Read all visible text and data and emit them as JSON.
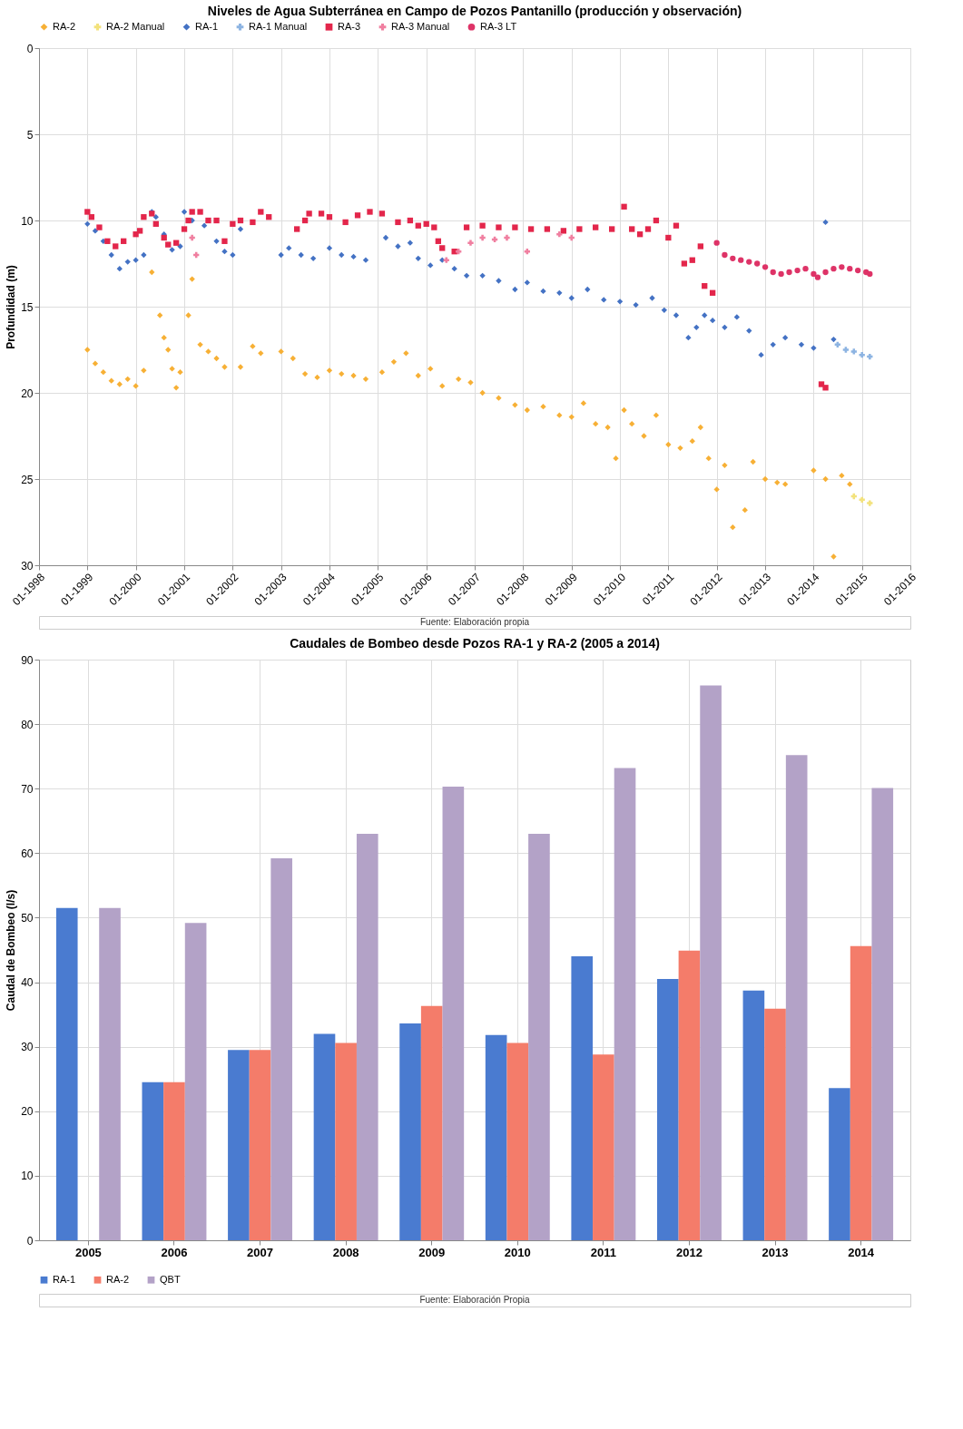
{
  "chart_data": [
    {
      "type": "scatter",
      "title": "Niveles de Agua Subterránea en Campo de Pozos Pantanillo (producción y observación)",
      "ylabel": "Profundidad (m)",
      "annotations": [
        "Fuente: Elaboración propia"
      ],
      "xlim": [
        "1998-01",
        "2016-01"
      ],
      "xticks": [
        {
          "value": "1998-01",
          "label": "01-1998"
        },
        {
          "value": "1999-01",
          "label": "01-1999"
        },
        {
          "value": "2000-01",
          "label": "01-2000"
        },
        {
          "value": "2001-01",
          "label": "01-2001"
        },
        {
          "value": "2002-01",
          "label": "01-2002"
        },
        {
          "value": "2003-01",
          "label": "01-2003"
        },
        {
          "value": "2004-01",
          "label": "01-2004"
        },
        {
          "value": "2005-01",
          "label": "01-2005"
        },
        {
          "value": "2006-01",
          "label": "01-2006"
        },
        {
          "value": "2007-01",
          "label": "01-2007"
        },
        {
          "value": "2008-01",
          "label": "01-2008"
        },
        {
          "value": "2009-01",
          "label": "01-2009"
        },
        {
          "value": "2010-01",
          "label": "01-2010"
        },
        {
          "value": "2011-01",
          "label": "01-2011"
        },
        {
          "value": "2012-01",
          "label": "01-2012"
        },
        {
          "value": "2013-01",
          "label": "01-2013"
        },
        {
          "value": "2014-01",
          "label": "01-2014"
        },
        {
          "value": "2015-01",
          "label": "01-2015"
        },
        {
          "value": "2016-01",
          "label": "01-2016"
        }
      ],
      "ylim": [
        30,
        0
      ],
      "yticks": [
        0,
        5,
        10,
        15,
        20,
        25,
        30
      ],
      "grid": true,
      "legend": "top",
      "series": [
        {
          "name": "RA-2",
          "color": "#f7b035",
          "marker": "diamond",
          "x": [
            "1999-01",
            "1999-03",
            "1999-05",
            "1999-07",
            "1999-09",
            "1999-11",
            "2000-01",
            "2000-03",
            "2000-05",
            "2000-07",
            "2000-08",
            "2000-09",
            "2000-10",
            "2000-11",
            "2000-12",
            "2001-02",
            "2001-03",
            "2001-05",
            "2001-07",
            "2001-09",
            "2001-11",
            "2002-03",
            "2002-06",
            "2002-08",
            "2003-01",
            "2003-04",
            "2003-07",
            "2003-10",
            "2004-01",
            "2004-04",
            "2004-07",
            "2004-10",
            "2005-02",
            "2005-05",
            "2005-08",
            "2005-11",
            "2006-02",
            "2006-05",
            "2006-09",
            "2006-12",
            "2007-03",
            "2007-07",
            "2007-11",
            "2008-02",
            "2008-06",
            "2008-10",
            "2009-01",
            "2009-04",
            "2009-07",
            "2009-10",
            "2009-12",
            "2010-02",
            "2010-04",
            "2010-07",
            "2010-10",
            "2011-01",
            "2011-04",
            "2011-07",
            "2011-09",
            "2011-11",
            "2012-01",
            "2012-03",
            "2012-05",
            "2012-08",
            "2012-10",
            "2013-01",
            "2013-04",
            "2013-06",
            "2014-01",
            "2014-04",
            "2014-06",
            "2014-08",
            "2014-10"
          ],
          "values": [
            17.5,
            18.3,
            18.8,
            19.3,
            19.5,
            19.2,
            19.6,
            18.7,
            13.0,
            15.5,
            16.8,
            17.5,
            18.6,
            19.7,
            18.8,
            15.5,
            13.4,
            17.2,
            17.6,
            18.0,
            18.5,
            18.5,
            17.3,
            17.7,
            17.6,
            18.0,
            18.9,
            19.1,
            18.7,
            18.9,
            19.0,
            19.2,
            18.8,
            18.2,
            17.7,
            19.0,
            18.6,
            19.6,
            19.2,
            19.4,
            20.0,
            20.3,
            20.7,
            21.0,
            20.8,
            21.3,
            21.4,
            20.6,
            21.8,
            22.0,
            23.8,
            21.0,
            21.8,
            22.5,
            21.3,
            23.0,
            23.2,
            22.8,
            22.0,
            23.8,
            25.6,
            24.2,
            27.8,
            26.8,
            24.0,
            25.0,
            25.2,
            25.3,
            24.5,
            25.0,
            29.5,
            24.8,
            25.3
          ]
        },
        {
          "name": "RA-2 Manual",
          "color": "#f3e27c",
          "marker": "cross",
          "x": [
            "2014-11",
            "2015-01",
            "2015-03"
          ],
          "values": [
            26.0,
            26.2,
            26.4
          ]
        },
        {
          "name": "RA-1",
          "color": "#4472c4",
          "marker": "diamond",
          "x": [
            "1999-01",
            "1999-03",
            "1999-05",
            "1999-07",
            "1999-09",
            "1999-11",
            "2000-01",
            "2000-03",
            "2000-05",
            "2000-06",
            "2000-08",
            "2000-10",
            "2000-12",
            "2001-01",
            "2001-03",
            "2001-06",
            "2001-09",
            "2001-11",
            "2002-01",
            "2002-03",
            "2003-01",
            "2003-03",
            "2003-06",
            "2003-09",
            "2004-01",
            "2004-04",
            "2004-07",
            "2004-10",
            "2005-03",
            "2005-06",
            "2005-09",
            "2005-11",
            "2006-02",
            "2006-05",
            "2006-08",
            "2006-11",
            "2007-03",
            "2007-07",
            "2007-11",
            "2008-02",
            "2008-06",
            "2008-10",
            "2009-01",
            "2009-05",
            "2009-09",
            "2010-01",
            "2010-05",
            "2010-09",
            "2010-12",
            "2011-03",
            "2011-06",
            "2011-08",
            "2011-10",
            "2011-12",
            "2012-03",
            "2012-06",
            "2012-09",
            "2012-12",
            "2013-03",
            "2013-06",
            "2013-10",
            "2014-01",
            "2014-04",
            "2014-06"
          ],
          "values": [
            10.2,
            10.6,
            11.2,
            12.0,
            12.8,
            12.4,
            12.3,
            12.0,
            9.5,
            9.8,
            10.8,
            11.7,
            11.5,
            9.5,
            10.0,
            10.3,
            11.2,
            11.8,
            12.0,
            10.5,
            12.0,
            11.6,
            12.0,
            12.2,
            11.6,
            12.0,
            12.1,
            12.3,
            11.0,
            11.5,
            11.3,
            12.2,
            12.6,
            12.3,
            12.8,
            13.2,
            13.2,
            13.5,
            14.0,
            13.6,
            14.1,
            14.2,
            14.5,
            14.0,
            14.6,
            14.7,
            14.9,
            14.5,
            15.2,
            15.5,
            16.8,
            16.2,
            15.5,
            15.8,
            16.2,
            15.6,
            16.4,
            17.8,
            17.2,
            16.8,
            17.2,
            17.4,
            10.1,
            16.9
          ]
        },
        {
          "name": "RA-1 Manual",
          "color": "#8db4e2",
          "marker": "cross",
          "x": [
            "2014-07",
            "2014-09",
            "2014-11",
            "2015-01",
            "2015-03"
          ],
          "values": [
            17.2,
            17.5,
            17.6,
            17.8,
            17.9
          ]
        },
        {
          "name": "RA-3",
          "color": "#e3264b",
          "marker": "square",
          "x": [
            "1999-01",
            "1999-02",
            "1999-04",
            "1999-06",
            "1999-08",
            "1999-10",
            "2000-01",
            "2000-02",
            "2000-03",
            "2000-05",
            "2000-06",
            "2000-08",
            "2000-09",
            "2000-11",
            "2001-01",
            "2001-02",
            "2001-03",
            "2001-05",
            "2001-07",
            "2001-09",
            "2001-11",
            "2002-01",
            "2002-03",
            "2002-06",
            "2002-08",
            "2002-10",
            "2003-05",
            "2003-07",
            "2003-08",
            "2003-11",
            "2004-01",
            "2004-05",
            "2004-08",
            "2004-11",
            "2005-02",
            "2005-06",
            "2005-09",
            "2005-11",
            "2006-01",
            "2006-03",
            "2006-04",
            "2006-05",
            "2006-08",
            "2006-11",
            "2007-03",
            "2007-07",
            "2007-11",
            "2008-03",
            "2008-07",
            "2008-11",
            "2009-03",
            "2009-07",
            "2009-11",
            "2010-02",
            "2010-04",
            "2010-06",
            "2010-08",
            "2010-10",
            "2011-01",
            "2011-03",
            "2011-05",
            "2011-07",
            "2011-09",
            "2011-10",
            "2011-12",
            "2014-03",
            "2014-04"
          ],
          "values": [
            9.5,
            9.8,
            10.4,
            11.2,
            11.5,
            11.2,
            10.8,
            10.6,
            9.8,
            9.6,
            10.2,
            11.0,
            11.4,
            11.3,
            10.5,
            10.0,
            9.5,
            9.5,
            10.0,
            10.0,
            11.2,
            10.2,
            10.0,
            10.1,
            9.5,
            9.8,
            10.5,
            10.0,
            9.6,
            9.6,
            9.8,
            10.1,
            9.7,
            9.5,
            9.6,
            10.1,
            10.0,
            10.3,
            10.2,
            10.4,
            11.2,
            11.6,
            11.8,
            10.4,
            10.3,
            10.4,
            10.4,
            10.5,
            10.5,
            10.6,
            10.5,
            10.4,
            10.5,
            9.2,
            10.5,
            10.8,
            10.5,
            10.0,
            11.0,
            10.3,
            12.5,
            12.3,
            11.5,
            13.8,
            14.2,
            19.5,
            19.7
          ]
        },
        {
          "name": "RA-3 Manual",
          "color": "#f07fa0",
          "marker": "cross",
          "x": [
            "2001-03",
            "2001-04",
            "2006-06",
            "2006-09",
            "2006-12",
            "2007-03",
            "2007-06",
            "2007-09",
            "2008-02",
            "2008-10",
            "2009-01"
          ],
          "values": [
            11.0,
            12.0,
            12.3,
            11.8,
            11.3,
            11.0,
            11.1,
            11.0,
            11.8,
            10.8,
            11.0
          ]
        },
        {
          "name": "RA-3 LT",
          "color": "#de3367",
          "marker": "circle",
          "x": [
            "2012-01",
            "2012-03",
            "2012-05",
            "2012-07",
            "2012-09",
            "2012-11",
            "2013-01",
            "2013-03",
            "2013-05",
            "2013-07",
            "2013-09",
            "2013-11",
            "2014-01",
            "2014-02",
            "2014-04",
            "2014-06",
            "2014-08",
            "2014-10",
            "2014-12",
            "2015-02",
            "2015-03"
          ],
          "values": [
            11.3,
            12.0,
            12.2,
            12.3,
            12.4,
            12.5,
            12.7,
            13.0,
            13.1,
            13.0,
            12.9,
            12.8,
            13.1,
            13.3,
            13.0,
            12.8,
            12.7,
            12.8,
            12.9,
            13.0,
            13.1
          ]
        }
      ]
    },
    {
      "type": "bar",
      "title": "Caudales de Bombeo desde Pozos RA-1 y RA-2 (2005 a 2014)",
      "ylabel": "Caudal de Bombeo (l/s)",
      "annotations": [
        "Fuente: Elaboración Propia"
      ],
      "categories": [
        "2005",
        "2006",
        "2007",
        "2008",
        "2009",
        "2010",
        "2011",
        "2012",
        "2013",
        "2014"
      ],
      "ylim": [
        0,
        90
      ],
      "yticks": [
        0,
        10,
        20,
        30,
        40,
        50,
        60,
        70,
        80,
        90
      ],
      "grid": true,
      "legend": "bottom",
      "series": [
        {
          "name": "RA-1",
          "color": "#4a7bd0",
          "values": [
            51.5,
            24.5,
            29.5,
            32.0,
            33.6,
            31.8,
            44.0,
            40.5,
            38.7,
            23.6
          ]
        },
        {
          "name": "RA-2",
          "color": "#f47c6a",
          "values": [
            null,
            24.5,
            29.5,
            30.6,
            36.3,
            30.6,
            28.8,
            44.9,
            35.9,
            45.6
          ]
        },
        {
          "name": "QBT",
          "color": "#b3a2c7",
          "values": [
            51.5,
            49.2,
            59.2,
            63.0,
            70.3,
            63.0,
            73.2,
            86.0,
            75.2,
            70.1
          ]
        }
      ]
    }
  ]
}
